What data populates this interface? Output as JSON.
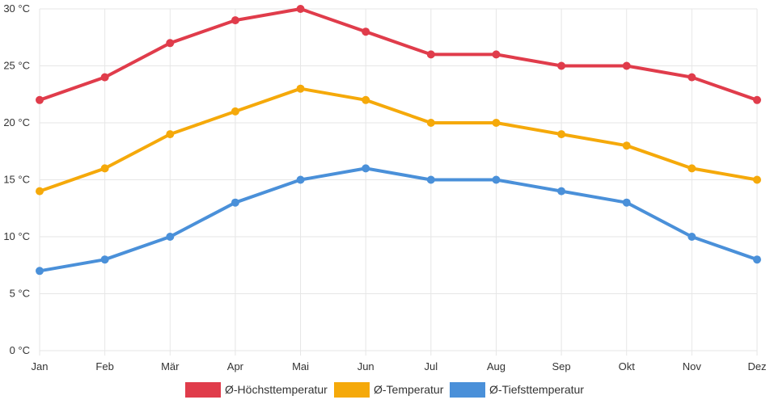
{
  "chart_data": {
    "type": "line",
    "title": "",
    "xlabel": "",
    "ylabel": "",
    "categories": [
      "Jan",
      "Feb",
      "Mär",
      "Apr",
      "Mai",
      "Jun",
      "Jul",
      "Aug",
      "Sep",
      "Okt",
      "Nov",
      "Dez"
    ],
    "ylim": [
      0,
      30
    ],
    "y_ticks": [
      0,
      5,
      10,
      15,
      20,
      25,
      30
    ],
    "y_tick_labels": [
      "0 °C",
      "5 °C",
      "10 °C",
      "15 °C",
      "20 °C",
      "25 °C",
      "30 °C"
    ],
    "grid": true,
    "legend_position": "bottom",
    "series": [
      {
        "name": "Ø-Höchsttemperatur",
        "color": "#e03c4b",
        "values": [
          22,
          24,
          27,
          29,
          30,
          28,
          26,
          26,
          25,
          25,
          24,
          22
        ]
      },
      {
        "name": "Ø-Temperatur",
        "color": "#f5a90a",
        "values": [
          14,
          16,
          19,
          21,
          23,
          22,
          20,
          20,
          19,
          18,
          16,
          15
        ]
      },
      {
        "name": "Ø-Tiefsttemperatur",
        "color": "#4a90d9",
        "values": [
          7,
          8,
          10,
          13,
          15,
          16,
          15,
          15,
          14,
          13,
          10,
          8
        ]
      }
    ]
  }
}
